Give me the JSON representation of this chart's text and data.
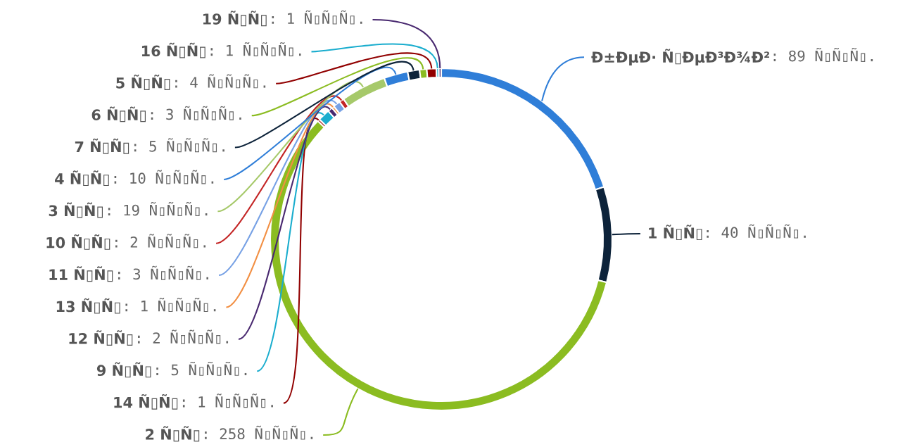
{
  "chart_data": {
    "type": "donut",
    "categories": [
      "Ð±ÐµÐ· Ñ▯ÐµÐ³Ð¾Ð²",
      "1 Ñ▯Ñ▯",
      "2 Ñ▯Ñ▯",
      "14 Ñ▯Ñ▯",
      "9 Ñ▯Ñ▯",
      "12 Ñ▯Ñ▯",
      "13 Ñ▯Ñ▯",
      "11 Ñ▯Ñ▯",
      "10 Ñ▯Ñ▯",
      "3 Ñ▯Ñ▯",
      "4 Ñ▯Ñ▯",
      "7 Ñ▯Ñ▯",
      "6 Ñ▯Ñ▯",
      "5 Ñ▯Ñ▯",
      "16 Ñ▯Ñ▯",
      "19 Ñ▯Ñ▯"
    ],
    "values": [
      89,
      40,
      258,
      1,
      5,
      2,
      1,
      3,
      2,
      19,
      10,
      5,
      3,
      4,
      1,
      1
    ],
    "colors": [
      "#2f7ed8",
      "#0d233a",
      "#8bbc21",
      "#910000",
      "#1aadce",
      "#492970",
      "#f28f43",
      "#77a1e5",
      "#c42525",
      "#a6c96a",
      "#2f7ed8",
      "#0d233a",
      "#8bbc21",
      "#910000",
      "#1aadce",
      "#492970"
    ],
    "value_labels": [
      ": 89 Ñ▯Ñ▯Ñ▯.",
      ": 40 Ñ▯Ñ▯Ñ▯.",
      ": 258 Ñ▯Ñ▯Ñ▯.",
      ": 1 Ñ▯Ñ▯Ñ▯.",
      ": 5 Ñ▯Ñ▯Ñ▯.",
      ": 2 Ñ▯Ñ▯Ñ▯.",
      ": 1 Ñ▯Ñ▯Ñ▯.",
      ": 3 Ñ▯Ñ▯Ñ▯.",
      ": 2 Ñ▯Ñ▯Ñ▯.",
      ": 19 Ñ▯Ñ▯Ñ▯.",
      ": 10 Ñ▯Ñ▯Ñ▯.",
      ": 5 Ñ▯Ñ▯Ñ▯.",
      ": 3 Ñ▯Ñ▯Ñ▯.",
      ": 4 Ñ▯Ñ▯Ñ▯.",
      ": 1 Ñ▯Ñ▯Ñ▯.",
      ": 1 Ñ▯Ñ▯Ñ▯."
    ]
  }
}
